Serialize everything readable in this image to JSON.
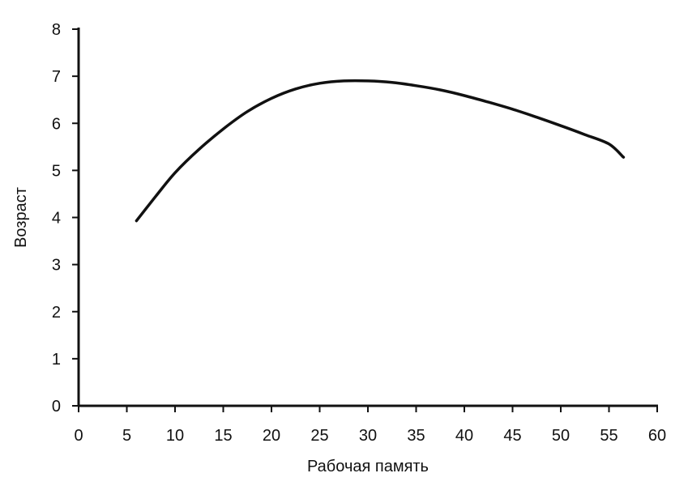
{
  "chart_data": {
    "type": "line",
    "title": "",
    "xlabel": "Рабочая память",
    "ylabel": "Возраст",
    "xlim": [
      0,
      60
    ],
    "ylim": [
      0,
      8
    ],
    "xticks": [
      0,
      5,
      10,
      15,
      20,
      25,
      30,
      35,
      40,
      45,
      50,
      55,
      60
    ],
    "yticks": [
      0,
      1,
      2,
      3,
      4,
      5,
      6,
      7,
      8
    ],
    "grid": false,
    "series": [
      {
        "color": "#111111",
        "x": [
          6,
          8,
          10,
          12.5,
          15,
          17.5,
          20,
          22.5,
          25,
          27.5,
          30,
          32.5,
          35,
          37.5,
          40,
          42.5,
          45,
          47.5,
          50,
          52.5,
          55,
          56.5
        ],
        "y": [
          3.93,
          4.45,
          4.95,
          5.45,
          5.88,
          6.25,
          6.53,
          6.73,
          6.85,
          6.9,
          6.9,
          6.87,
          6.8,
          6.71,
          6.59,
          6.45,
          6.3,
          6.13,
          5.95,
          5.76,
          5.56,
          5.28
        ]
      }
    ]
  }
}
